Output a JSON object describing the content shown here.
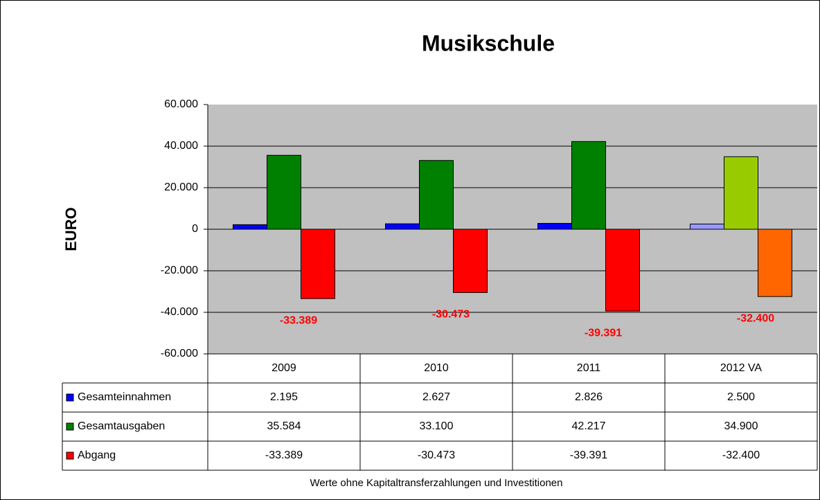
{
  "chart_data": {
    "type": "bar",
    "title": "Musikschule",
    "y_label": "EURO",
    "footnote": "Werte ohne Kapitaltransferzahlungen und Investitionen",
    "categories": [
      "2009",
      "2010",
      "2011",
      "2012 VA"
    ],
    "series": [
      {
        "name": "Gesamteinnahmen",
        "color": "#0000ff",
        "colors": [
          "#0000ff",
          "#0000ff",
          "#0000ff",
          "#9999ff"
        ],
        "values": [
          2195,
          2627,
          2826,
          2500
        ],
        "value_labels": [
          "2.195",
          "2.627",
          "2.826",
          "2.500"
        ]
      },
      {
        "name": "Gesamtausgaben",
        "color": "#008000",
        "colors": [
          "#008000",
          "#008000",
          "#008000",
          "#99cc00"
        ],
        "values": [
          35584,
          33100,
          42217,
          34900
        ],
        "value_labels": [
          "35.584",
          "33.100",
          "42.217",
          "34.900"
        ]
      },
      {
        "name": "Abgang",
        "color": "#ff0000",
        "colors": [
          "#ff0000",
          "#ff0000",
          "#ff0000",
          "#ff6600"
        ],
        "values": [
          -33389,
          -30473,
          -39391,
          -32400
        ],
        "value_labels": [
          "-33.389",
          "-30.473",
          "-39.391",
          "-32.400"
        ],
        "show_labels": true
      }
    ],
    "ylim": [
      -60000,
      60000
    ],
    "yticks": [
      {
        "value": -60000,
        "label": "-60.000"
      },
      {
        "value": -40000,
        "label": "-40.000"
      },
      {
        "value": -20000,
        "label": "-20.000"
      },
      0,
      {
        "value": 20000,
        "label": "20.000"
      },
      {
        "value": 40000,
        "label": "40.000"
      },
      {
        "value": 60000,
        "label": "60.000"
      }
    ],
    "grid": true,
    "data_table": true
  }
}
